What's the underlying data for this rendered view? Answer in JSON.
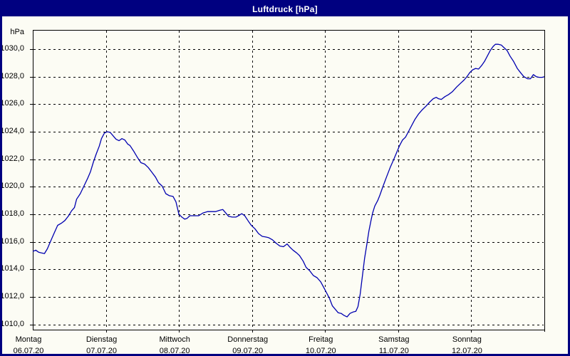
{
  "window": {
    "title": "Luftdruck [hPa]"
  },
  "colors": {
    "titlebar_bg": "#000080",
    "titlebar_text": "#FFFFFF",
    "page_bg": "#FCFCF4",
    "outer_border": "#000080",
    "plot_border": "#000000",
    "grid": "#000000",
    "line": "#0000B0",
    "label_text": "#000000"
  },
  "chart_data": {
    "type": "line",
    "title": "Luftdruck [hPa]",
    "ylabel": "hPa",
    "xlabel": "",
    "grid": "dashed",
    "legend": "none",
    "ylim": [
      1010,
      1030
    ],
    "xlim_days": [
      0,
      7
    ],
    "y_ticks": [
      {
        "label": "1030,0",
        "value": 1030
      },
      {
        "label": "1028,0",
        "value": 1028
      },
      {
        "label": "1026,0",
        "value": 1026
      },
      {
        "label": "1024,0",
        "value": 1024
      },
      {
        "label": "1022,0",
        "value": 1022
      },
      {
        "label": "1020,0",
        "value": 1020
      },
      {
        "label": "1018,0",
        "value": 1018
      },
      {
        "label": "1016,0",
        "value": 1016
      },
      {
        "label": "1014,0",
        "value": 1014
      },
      {
        "label": "1012,0",
        "value": 1012
      },
      {
        "label": "1010,0",
        "value": 1010
      }
    ],
    "x_days": [
      {
        "weekday": "Montag",
        "date": "06.07.20",
        "t": 0
      },
      {
        "weekday": "Dienstag",
        "date": "07.07.20",
        "t": 1
      },
      {
        "weekday": "Mittwoch",
        "date": "08.07.20",
        "t": 2
      },
      {
        "weekday": "Donnerstag",
        "date": "09.07.20",
        "t": 3
      },
      {
        "weekday": "Freitag",
        "date": "10.07.20",
        "t": 4
      },
      {
        "weekday": "Samstag",
        "date": "11.07.20",
        "t": 5
      },
      {
        "weekday": "Sonntag",
        "date": "12.07.20",
        "t": 6
      }
    ],
    "series": [
      {
        "name": "Luftdruck",
        "unit": "hPa",
        "color": "#0000B0",
        "points": [
          [
            0.0,
            1015.3
          ],
          [
            0.04,
            1015.4
          ],
          [
            0.08,
            1015.25
          ],
          [
            0.12,
            1015.2
          ],
          [
            0.16,
            1015.15
          ],
          [
            0.2,
            1015.5
          ],
          [
            0.24,
            1016.0
          ],
          [
            0.29,
            1016.6
          ],
          [
            0.34,
            1017.2
          ],
          [
            0.39,
            1017.35
          ],
          [
            0.44,
            1017.55
          ],
          [
            0.49,
            1017.9
          ],
          [
            0.53,
            1018.25
          ],
          [
            0.57,
            1018.5
          ],
          [
            0.6,
            1019.1
          ],
          [
            0.65,
            1019.5
          ],
          [
            0.7,
            1020.05
          ],
          [
            0.75,
            1020.6
          ],
          [
            0.79,
            1021.1
          ],
          [
            0.83,
            1021.8
          ],
          [
            0.87,
            1022.4
          ],
          [
            0.91,
            1022.95
          ],
          [
            0.94,
            1023.5
          ],
          [
            0.98,
            1023.9
          ],
          [
            1.02,
            1024.0
          ],
          [
            1.06,
            1023.95
          ],
          [
            1.1,
            1023.7
          ],
          [
            1.14,
            1023.45
          ],
          [
            1.18,
            1023.35
          ],
          [
            1.22,
            1023.5
          ],
          [
            1.26,
            1023.4
          ],
          [
            1.3,
            1023.1
          ],
          [
            1.33,
            1023.0
          ],
          [
            1.38,
            1022.6
          ],
          [
            1.43,
            1022.15
          ],
          [
            1.48,
            1021.75
          ],
          [
            1.53,
            1021.65
          ],
          [
            1.58,
            1021.4
          ],
          [
            1.63,
            1021.05
          ],
          [
            1.68,
            1020.7
          ],
          [
            1.72,
            1020.3
          ],
          [
            1.77,
            1020.05
          ],
          [
            1.82,
            1019.5
          ],
          [
            1.87,
            1019.35
          ],
          [
            1.92,
            1019.3
          ],
          [
            1.96,
            1018.9
          ],
          [
            2.0,
            1018.0
          ],
          [
            2.04,
            1017.8
          ],
          [
            2.08,
            1017.65
          ],
          [
            2.11,
            1017.7
          ],
          [
            2.15,
            1017.9
          ],
          [
            2.21,
            1017.9
          ],
          [
            2.27,
            1017.9
          ],
          [
            2.33,
            1018.1
          ],
          [
            2.39,
            1018.2
          ],
          [
            2.45,
            1018.2
          ],
          [
            2.5,
            1018.2
          ],
          [
            2.56,
            1018.3
          ],
          [
            2.6,
            1018.35
          ],
          [
            2.64,
            1018.1
          ],
          [
            2.68,
            1017.85
          ],
          [
            2.73,
            1017.8
          ],
          [
            2.78,
            1017.8
          ],
          [
            2.83,
            1017.95
          ],
          [
            2.86,
            1018.05
          ],
          [
            2.9,
            1017.9
          ],
          [
            2.95,
            1017.5
          ],
          [
            2.99,
            1017.2
          ],
          [
            3.04,
            1016.95
          ],
          [
            3.09,
            1016.6
          ],
          [
            3.14,
            1016.4
          ],
          [
            3.19,
            1016.35
          ],
          [
            3.23,
            1016.3
          ],
          [
            3.28,
            1016.15
          ],
          [
            3.33,
            1015.9
          ],
          [
            3.38,
            1015.7
          ],
          [
            3.43,
            1015.65
          ],
          [
            3.48,
            1015.85
          ],
          [
            3.52,
            1015.6
          ],
          [
            3.56,
            1015.4
          ],
          [
            3.61,
            1015.2
          ],
          [
            3.65,
            1015.0
          ],
          [
            3.7,
            1014.6
          ],
          [
            3.74,
            1014.15
          ],
          [
            3.79,
            1013.9
          ],
          [
            3.84,
            1013.55
          ],
          [
            3.89,
            1013.4
          ],
          [
            3.94,
            1013.1
          ],
          [
            3.99,
            1012.6
          ],
          [
            4.02,
            1012.3
          ],
          [
            4.06,
            1011.9
          ],
          [
            4.1,
            1011.35
          ],
          [
            4.14,
            1011.1
          ],
          [
            4.18,
            1010.85
          ],
          [
            4.22,
            1010.8
          ],
          [
            4.26,
            1010.65
          ],
          [
            4.3,
            1010.55
          ],
          [
            4.34,
            1010.8
          ],
          [
            4.38,
            1010.9
          ],
          [
            4.42,
            1010.95
          ],
          [
            4.45,
            1011.3
          ],
          [
            4.48,
            1012.2
          ],
          [
            4.51,
            1013.5
          ],
          [
            4.54,
            1014.8
          ],
          [
            4.57,
            1015.8
          ],
          [
            4.6,
            1016.8
          ],
          [
            4.63,
            1017.6
          ],
          [
            4.65,
            1018.1
          ],
          [
            4.68,
            1018.6
          ],
          [
            4.72,
            1019.0
          ],
          [
            4.75,
            1019.4
          ],
          [
            4.79,
            1020.0
          ],
          [
            4.84,
            1020.7
          ],
          [
            4.89,
            1021.4
          ],
          [
            4.94,
            1022.0
          ],
          [
            4.98,
            1022.5
          ],
          [
            5.02,
            1023.0
          ],
          [
            5.06,
            1023.4
          ],
          [
            5.1,
            1023.6
          ],
          [
            5.14,
            1024.0
          ],
          [
            5.19,
            1024.5
          ],
          [
            5.23,
            1024.9
          ],
          [
            5.28,
            1025.3
          ],
          [
            5.33,
            1025.6
          ],
          [
            5.38,
            1025.85
          ],
          [
            5.43,
            1026.15
          ],
          [
            5.48,
            1026.4
          ],
          [
            5.52,
            1026.5
          ],
          [
            5.55,
            1026.4
          ],
          [
            5.59,
            1026.35
          ],
          [
            5.64,
            1026.55
          ],
          [
            5.69,
            1026.7
          ],
          [
            5.74,
            1026.9
          ],
          [
            5.8,
            1027.25
          ],
          [
            5.85,
            1027.5
          ],
          [
            5.9,
            1027.75
          ],
          [
            5.94,
            1028.0
          ],
          [
            5.98,
            1028.3
          ],
          [
            6.02,
            1028.5
          ],
          [
            6.06,
            1028.6
          ],
          [
            6.1,
            1028.55
          ],
          [
            6.14,
            1028.8
          ],
          [
            6.18,
            1029.1
          ],
          [
            6.22,
            1029.5
          ],
          [
            6.26,
            1029.9
          ],
          [
            6.3,
            1030.2
          ],
          [
            6.33,
            1030.35
          ],
          [
            6.37,
            1030.35
          ],
          [
            6.41,
            1030.3
          ],
          [
            6.45,
            1030.1
          ],
          [
            6.49,
            1029.9
          ],
          [
            6.53,
            1029.5
          ],
          [
            6.58,
            1029.1
          ],
          [
            6.63,
            1028.6
          ],
          [
            6.68,
            1028.25
          ],
          [
            6.72,
            1028.0
          ],
          [
            6.77,
            1027.85
          ],
          [
            6.81,
            1027.85
          ],
          [
            6.85,
            1028.15
          ],
          [
            6.89,
            1028.0
          ],
          [
            6.93,
            1027.95
          ],
          [
            6.97,
            1027.95
          ],
          [
            7.0,
            1028.0
          ]
        ]
      }
    ]
  }
}
